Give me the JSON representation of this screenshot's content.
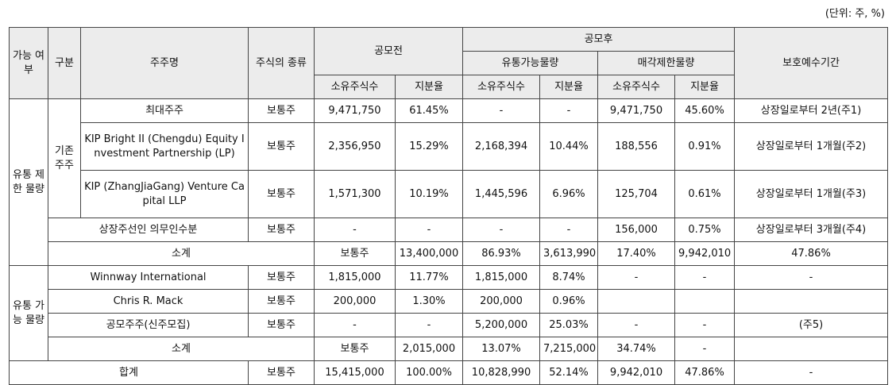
{
  "unit_label": "(단위: 주, %)",
  "header": {
    "col_gane": "가능 여부",
    "col_gubun": "구분",
    "col_holder": "주주명",
    "col_stock_type": "주식의 종류",
    "before_offering": "공모전",
    "after_offering": "공모후",
    "tradable": "유통가능물량",
    "restricted": "매각제한물량",
    "shares": "소유주식수",
    "ratio": "지분율",
    "lockup": "보호예수기간"
  },
  "groups": {
    "restricted": "유통 제한 물량",
    "existing": "기존 주주",
    "tradable": "유통 가능 물량"
  },
  "rows": {
    "r1": {
      "name": "최대주주",
      "type": "보통주",
      "pre_shares": "9,471,750",
      "pre_ratio": "61.45%",
      "trd_shares": "-",
      "trd_ratio": "-",
      "res_shares": "9,471,750",
      "res_ratio": "45.60%",
      "lockup": "상장일로부터 2년(주1)"
    },
    "r2": {
      "name": "KIP Bright II (Chengdu) Equity Investment Partnership (LP)",
      "type": "보통주",
      "pre_shares": "2,356,950",
      "pre_ratio": "15.29%",
      "trd_shares": "2,168,394",
      "trd_ratio": "10.44%",
      "res_shares": "188,556",
      "res_ratio": "0.91%",
      "lockup": "상장일로부터 1개월(주2)"
    },
    "r3": {
      "name": "KIP (ZhangJiaGang) Venture Capital LLP",
      "type": "보통주",
      "pre_shares": "1,571,300",
      "pre_ratio": "10.19%",
      "trd_shares": "1,445,596",
      "trd_ratio": "6.96%",
      "res_shares": "125,704",
      "res_ratio": "0.61%",
      "lockup": "상장일로부터 1개월(주3)"
    },
    "r4": {
      "name": "상장주선인 의무인수분",
      "type": "보통주",
      "pre_shares": "-",
      "pre_ratio": "-",
      "trd_shares": "-",
      "trd_ratio": "-",
      "res_shares": "156,000",
      "res_ratio": "0.75%",
      "lockup": "상장일로부터 3개월(주4)"
    },
    "sub1": {
      "name": "소계",
      "type": "보통주",
      "pre_shares": "13,400,000",
      "pre_ratio": "86.93%",
      "trd_shares": "3,613,990",
      "trd_ratio": "17.40%",
      "res_shares": "9,942,010",
      "res_ratio": "47.86%",
      "lockup": "-"
    },
    "r5": {
      "name": "Winnway International",
      "type": "보통주",
      "pre_shares": "1,815,000",
      "pre_ratio": "11.77%",
      "trd_shares": "1,815,000",
      "trd_ratio": "8.74%",
      "res_shares": "-",
      "res_ratio": "-",
      "lockup": "-"
    },
    "r6": {
      "name": "Chris R. Mack",
      "type": "보통주",
      "pre_shares": "200,000",
      "pre_ratio": "1.30%",
      "trd_shares": "200,000",
      "trd_ratio": "0.96%",
      "res_shares": "",
      "res_ratio": "",
      "lockup": ""
    },
    "r7": {
      "name": "공모주주(신주모집)",
      "type": "보통주",
      "pre_shares": "-",
      "pre_ratio": "-",
      "trd_shares": "5,200,000",
      "trd_ratio": "25.03%",
      "res_shares": "-",
      "res_ratio": "-",
      "lockup": "(주5)"
    },
    "sub2": {
      "name": "소계",
      "type": "보통주",
      "pre_shares": "2,015,000",
      "pre_ratio": "13.07%",
      "trd_shares": "7,215,000",
      "trd_ratio": "34.74%",
      "res_shares": "-",
      "res_ratio": "",
      "lockup": "-"
    },
    "total": {
      "name": "합계",
      "type": "보통주",
      "pre_shares": "15,415,000",
      "pre_ratio": "100.00%",
      "trd_shares": "10,828,990",
      "trd_ratio": "52.14%",
      "res_shares": "9,942,010",
      "res_ratio": "47.86%",
      "lockup": "-"
    }
  }
}
